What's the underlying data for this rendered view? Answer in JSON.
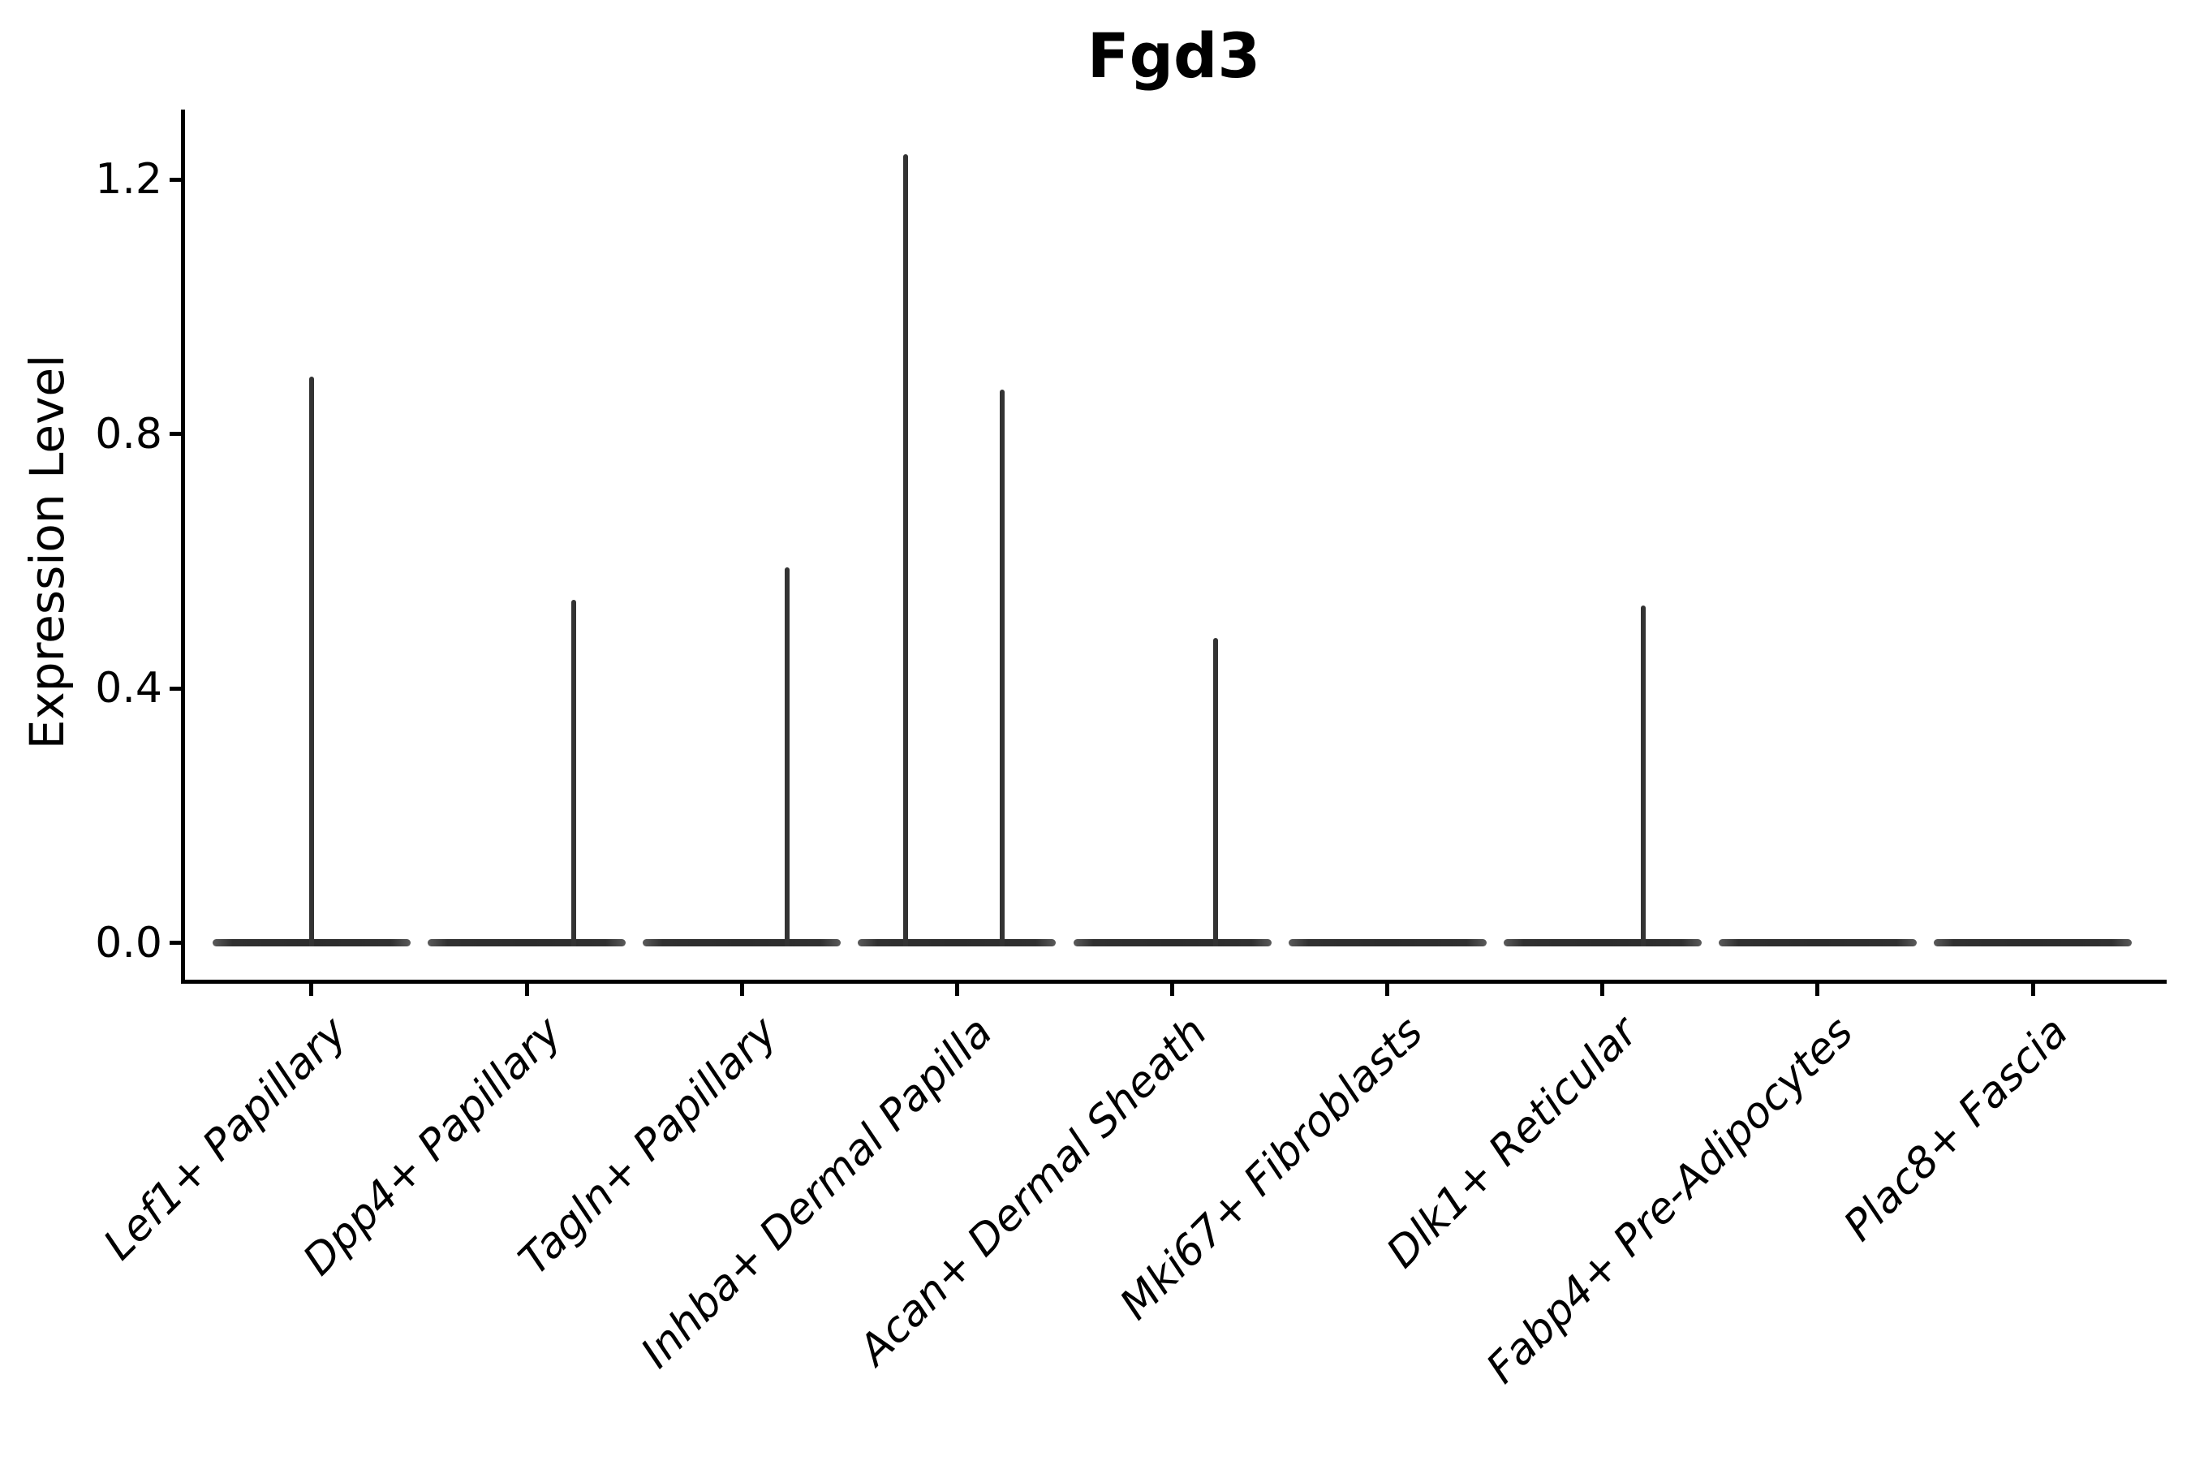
{
  "chart_data": {
    "type": "violin",
    "title": "Fgd3",
    "xlabel": "",
    "ylabel": "Expression Level",
    "yticks": [
      0.0,
      0.4,
      0.8,
      1.2
    ],
    "ytick_labels": [
      "0.0",
      "0.4",
      "0.8",
      "1.2"
    ],
    "ylim": [
      -0.06,
      1.31
    ],
    "grid": false,
    "legend": "none",
    "categories": [
      "Lef1+ Papillary",
      "Dpp4+ Papillary",
      "Tagln+ Papillary",
      "Inhba+ Dermal Papilla",
      "Acan+ Dermal Sheath",
      "Mki67+ Fibroblasts",
      "Dlk1+ Reticular",
      "Fabp4+ Pre-Adipocytes",
      "Plac8+ Fascia"
    ],
    "violins": [
      {
        "category": "Lef1+ Papillary",
        "baseline_value": 0.0,
        "max_expression": 0.89,
        "spikes": [
          {
            "value": 0.89,
            "offset": 0.0
          }
        ]
      },
      {
        "category": "Dpp4+ Papillary",
        "baseline_value": 0.0,
        "max_expression": 0.54,
        "spikes": [
          {
            "value": 0.54,
            "offset": 0.22
          }
        ]
      },
      {
        "category": "Tagln+ Papillary",
        "baseline_value": 0.0,
        "max_expression": 0.59,
        "spikes": [
          {
            "value": 0.59,
            "offset": 0.21
          }
        ]
      },
      {
        "category": "Inhba+ Dermal Papilla",
        "baseline_value": 0.0,
        "max_expression": 1.24,
        "spikes": [
          {
            "value": 1.24,
            "offset": -0.24
          },
          {
            "value": 0.87,
            "offset": 0.21
          }
        ]
      },
      {
        "category": "Acan+ Dermal Sheath",
        "baseline_value": 0.0,
        "max_expression": 0.48,
        "spikes": [
          {
            "value": 0.48,
            "offset": 0.2
          }
        ]
      },
      {
        "category": "Mki67+ Fibroblasts",
        "baseline_value": 0.0,
        "max_expression": 0.0,
        "spikes": []
      },
      {
        "category": "Dlk1+ Reticular",
        "baseline_value": 0.0,
        "max_expression": 0.53,
        "spikes": [
          {
            "value": 0.53,
            "offset": 0.19
          }
        ]
      },
      {
        "category": "Fabp4+ Pre-Adipocytes",
        "baseline_value": 0.0,
        "max_expression": 0.0,
        "spikes": []
      },
      {
        "category": "Plac8+ Fascia",
        "baseline_value": 0.0,
        "max_expression": 0.0,
        "spikes": []
      }
    ],
    "style": {
      "violin_color": "#333333",
      "axis_color": "#000000",
      "text_color": "#000000",
      "background_color": "#ffffff"
    }
  }
}
